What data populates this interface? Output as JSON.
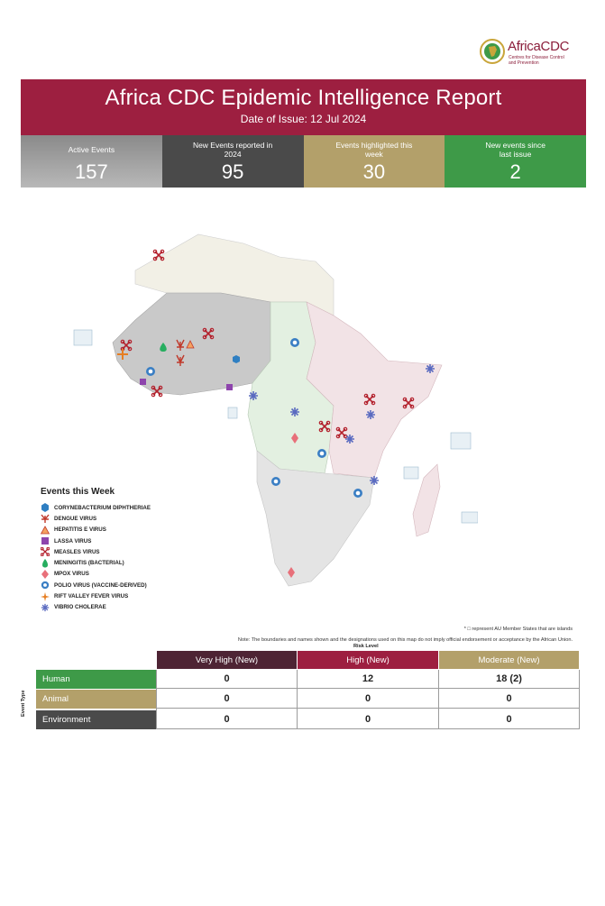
{
  "logo": {
    "name": "AfricaCDC",
    "tagline": "Centres for Disease Control and Prevention"
  },
  "header": {
    "title": "Africa CDC Epidemic Intelligence Report",
    "date": "Date of Issue: 12 Jul 2024"
  },
  "stats": [
    {
      "label": "Active Events",
      "value": "157"
    },
    {
      "label": "New Events reported in 2024",
      "value": "95"
    },
    {
      "label": "Events highlighted this week",
      "value": "30"
    },
    {
      "label": "New events since last issue",
      "value": "2"
    }
  ],
  "legend": {
    "title": "Events this Week",
    "items": [
      {
        "label": "CORYNEBACTERIUM DIPHTHERIAE",
        "icon": "hexagon-icon",
        "color": "#2f7fc2"
      },
      {
        "label": "DENGUE VIRUS",
        "icon": "mosquito-icon",
        "color": "#c0392b"
      },
      {
        "label": "HEPATITIS E VIRUS",
        "icon": "triangle-icon",
        "color": "#e07b39"
      },
      {
        "label": "LASSA VIRUS",
        "icon": "square-icon",
        "color": "#8e44ad"
      },
      {
        "label": "MEASLES VIRUS",
        "icon": "measles-icon",
        "color": "#c0392b"
      },
      {
        "label": "MENINGITIS (BACTERIAL)",
        "icon": "drop-icon",
        "color": "#27ae60"
      },
      {
        "label": "MPOX VIRUS",
        "icon": "diamond-icon",
        "color": "#e8707a"
      },
      {
        "label": "POLIO VIRUS (VACCINE-DERIVED)",
        "icon": "polio-icon",
        "color": "#3b7fc4"
      },
      {
        "label": "RIFT VALLEY FEVER VIRUS",
        "icon": "star-icon",
        "color": "#e67e22"
      },
      {
        "label": "VIBRIO CHOLERAE",
        "icon": "cholera-icon",
        "color": "#5b6bc0"
      }
    ]
  },
  "notes": {
    "islands": "* □ represent AU Member States that are islands",
    "disclaimer": "Note: The boundaries and names shown and the designations used on this map do not imply official endorsement or acceptance by the African Union."
  },
  "risk_table": {
    "risk_level_title": "Risk Level",
    "event_type_title": "Event Type",
    "columns": [
      "Very High (New)",
      "High (New)",
      "Moderate (New)"
    ],
    "column_colors": [
      "#4e2434",
      "#9d1f40",
      "#b3a06a"
    ],
    "rows": [
      {
        "label": "Human",
        "color": "#3e9a48",
        "values": [
          "0",
          "12",
          "18 (2)"
        ]
      },
      {
        "label": "Animal",
        "color": "#b3a06a",
        "values": [
          "0",
          "0",
          "0"
        ]
      },
      {
        "label": "Environment",
        "color": "#4a4a4a",
        "values": [
          "0",
          "0",
          "0"
        ]
      }
    ]
  }
}
